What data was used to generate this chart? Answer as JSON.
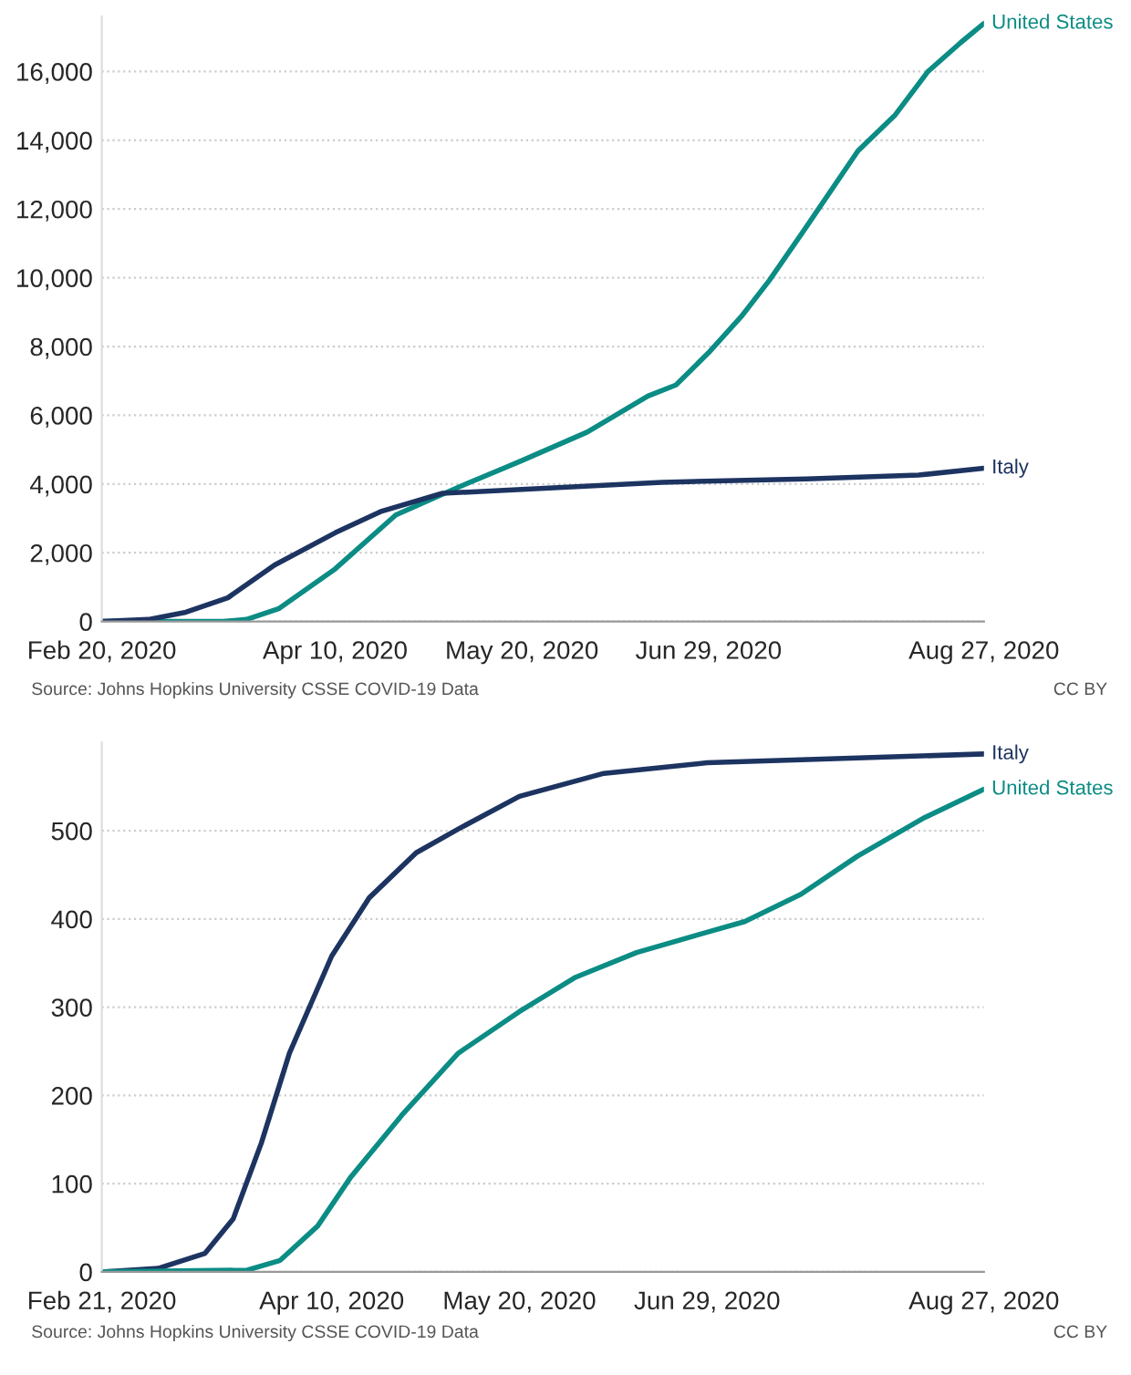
{
  "chart_data": [
    {
      "type": "line",
      "xlim": [
        "2020-02-20",
        "2020-08-27"
      ],
      "xticks": [
        {
          "value": "2020-02-20",
          "label": "Feb 20, 2020"
        },
        {
          "value": "2020-04-10",
          "label": "Apr 10, 2020"
        },
        {
          "value": "2020-05-20",
          "label": "May 20, 2020"
        },
        {
          "value": "2020-06-29",
          "label": "Jun 29, 2020"
        },
        {
          "value": "2020-08-27",
          "label": "Aug 27, 2020"
        }
      ],
      "ylim": [
        0,
        17600
      ],
      "yticks": [
        {
          "value": 0,
          "label": "0"
        },
        {
          "value": 2000,
          "label": "2,000"
        },
        {
          "value": 4000,
          "label": "4,000"
        },
        {
          "value": 6000,
          "label": "6,000"
        },
        {
          "value": 8000,
          "label": "8,000"
        },
        {
          "value": 10000,
          "label": "10,000"
        },
        {
          "value": 12000,
          "label": "12,000"
        },
        {
          "value": 14000,
          "label": "14,000"
        },
        {
          "value": 16000,
          "label": "16,000"
        }
      ],
      "grid": "y",
      "legend": false,
      "line_style": "solid",
      "marker": "none",
      "series": [
        {
          "name": "United States",
          "color": "#0b8c84",
          "x": [
            "2020-02-20",
            "2020-03-17",
            "2020-03-22",
            "2020-03-29",
            "2020-04-10",
            "2020-04-23",
            "2020-05-07",
            "2020-05-20",
            "2020-06-03",
            "2020-06-16",
            "2020-06-22",
            "2020-06-29",
            "2020-07-06",
            "2020-07-12",
            "2020-07-20",
            "2020-07-31",
            "2020-08-08",
            "2020-08-15",
            "2020-08-22",
            "2020-08-27"
          ],
          "values": [
            0,
            0,
            60,
            380,
            1530,
            3100,
            3940,
            4680,
            5510,
            6560,
            6880,
            7820,
            8870,
            9920,
            11490,
            13690,
            14740,
            16000,
            16840,
            17400
          ]
        },
        {
          "name": "Italy",
          "color": "#1d3461",
          "x": [
            "2020-02-20",
            "2020-03-01",
            "2020-03-09",
            "2020-03-18",
            "2020-03-28",
            "2020-04-10",
            "2020-04-20",
            "2020-05-03",
            "2020-05-20",
            "2020-06-19",
            "2020-07-20",
            "2020-08-13",
            "2020-08-27"
          ],
          "values": [
            0,
            60,
            270,
            690,
            1640,
            2580,
            3210,
            3730,
            3840,
            4050,
            4150,
            4260,
            4460
          ]
        }
      ],
      "annotations": [
        "Source: Johns Hopkins University CSSE COVID-19 Data",
        "CC BY"
      ]
    },
    {
      "type": "line",
      "xlim": [
        "2020-02-21",
        "2020-08-27"
      ],
      "xticks": [
        {
          "value": "2020-02-21",
          "label": "Feb 21, 2020"
        },
        {
          "value": "2020-04-10",
          "label": "Apr 10, 2020"
        },
        {
          "value": "2020-05-20",
          "label": "May 20, 2020"
        },
        {
          "value": "2020-06-29",
          "label": "Jun 29, 2020"
        },
        {
          "value": "2020-08-27",
          "label": "Aug 27, 2020"
        }
      ],
      "ylim": [
        0,
        600
      ],
      "yticks": [
        0,
        100,
        200,
        300,
        400,
        500
      ],
      "grid": "y",
      "legend": false,
      "line_style": "solid",
      "marker": "none",
      "series": [
        {
          "name": "Italy",
          "color": "#1d3461",
          "x": [
            "2020-02-21",
            "2020-03-04",
            "2020-03-14",
            "2020-03-20",
            "2020-03-26",
            "2020-04-01",
            "2020-04-10",
            "2020-04-18",
            "2020-04-28",
            "2020-05-07",
            "2020-05-20",
            "2020-06-07",
            "2020-06-29",
            "2020-07-22",
            "2020-08-27"
          ],
          "values": [
            0,
            4,
            21,
            60,
            146,
            248,
            358,
            424,
            475,
            502,
            539,
            565,
            577,
            581,
            587
          ]
        },
        {
          "name": "United States",
          "color": "#0b8c84",
          "x": [
            "2020-02-21",
            "2020-03-23",
            "2020-03-30",
            "2020-04-07",
            "2020-04-14",
            "2020-04-25",
            "2020-05-07",
            "2020-05-20",
            "2020-06-01",
            "2020-06-14",
            "2020-06-29",
            "2020-07-07",
            "2020-07-19",
            "2020-07-31",
            "2020-08-14",
            "2020-08-27"
          ],
          "values": [
            0,
            2,
            13,
            52,
            107,
            178,
            248,
            295,
            334,
            362,
            385,
            397,
            428,
            471,
            514,
            547
          ]
        }
      ],
      "annotations": [
        "Source: Johns Hopkins University CSSE COVID-19 Data",
        "CC BY"
      ]
    }
  ]
}
